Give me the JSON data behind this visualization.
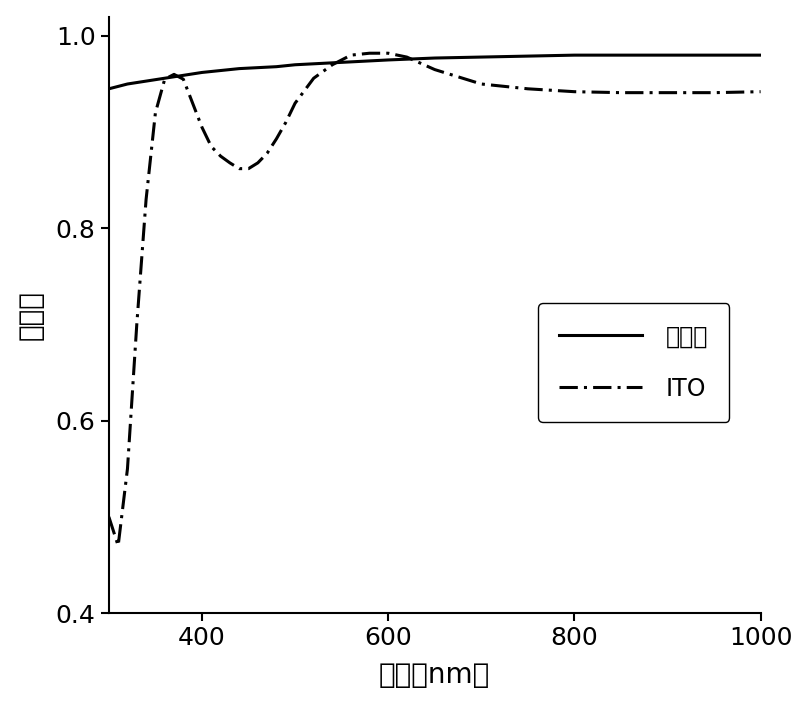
{
  "graphene_x": [
    300,
    320,
    340,
    360,
    380,
    400,
    420,
    440,
    460,
    480,
    500,
    520,
    540,
    560,
    580,
    600,
    650,
    700,
    750,
    800,
    850,
    900,
    950,
    1000
  ],
  "graphene_y": [
    0.945,
    0.95,
    0.953,
    0.956,
    0.959,
    0.962,
    0.964,
    0.966,
    0.967,
    0.968,
    0.97,
    0.971,
    0.972,
    0.973,
    0.974,
    0.975,
    0.977,
    0.978,
    0.979,
    0.98,
    0.98,
    0.98,
    0.98,
    0.98
  ],
  "ito_x": [
    300,
    310,
    320,
    330,
    340,
    350,
    360,
    370,
    380,
    390,
    400,
    410,
    420,
    430,
    440,
    450,
    460,
    470,
    480,
    490,
    500,
    520,
    540,
    560,
    580,
    600,
    620,
    650,
    700,
    750,
    800,
    850,
    900,
    950,
    1000
  ],
  "ito_y": [
    0.5,
    0.47,
    0.55,
    0.7,
    0.83,
    0.92,
    0.955,
    0.96,
    0.955,
    0.93,
    0.905,
    0.885,
    0.875,
    0.868,
    0.862,
    0.862,
    0.868,
    0.878,
    0.893,
    0.91,
    0.93,
    0.956,
    0.97,
    0.98,
    0.982,
    0.982,
    0.978,
    0.965,
    0.95,
    0.945,
    0.942,
    0.941,
    0.941,
    0.941,
    0.942
  ],
  "xlabel": "波长（nm）",
  "ylabel": "透射率",
  "legend_graphene": "石墨烯",
  "legend_ito": "ITO",
  "xlim": [
    300,
    1000
  ],
  "ylim": [
    0.4,
    1.02
  ],
  "xticks": [
    400,
    600,
    800,
    1000
  ],
  "yticks": [
    0.4,
    0.6,
    0.8,
    1.0
  ],
  "background_color": "#ffffff",
  "line_color": "#000000",
  "linewidth": 2.2
}
